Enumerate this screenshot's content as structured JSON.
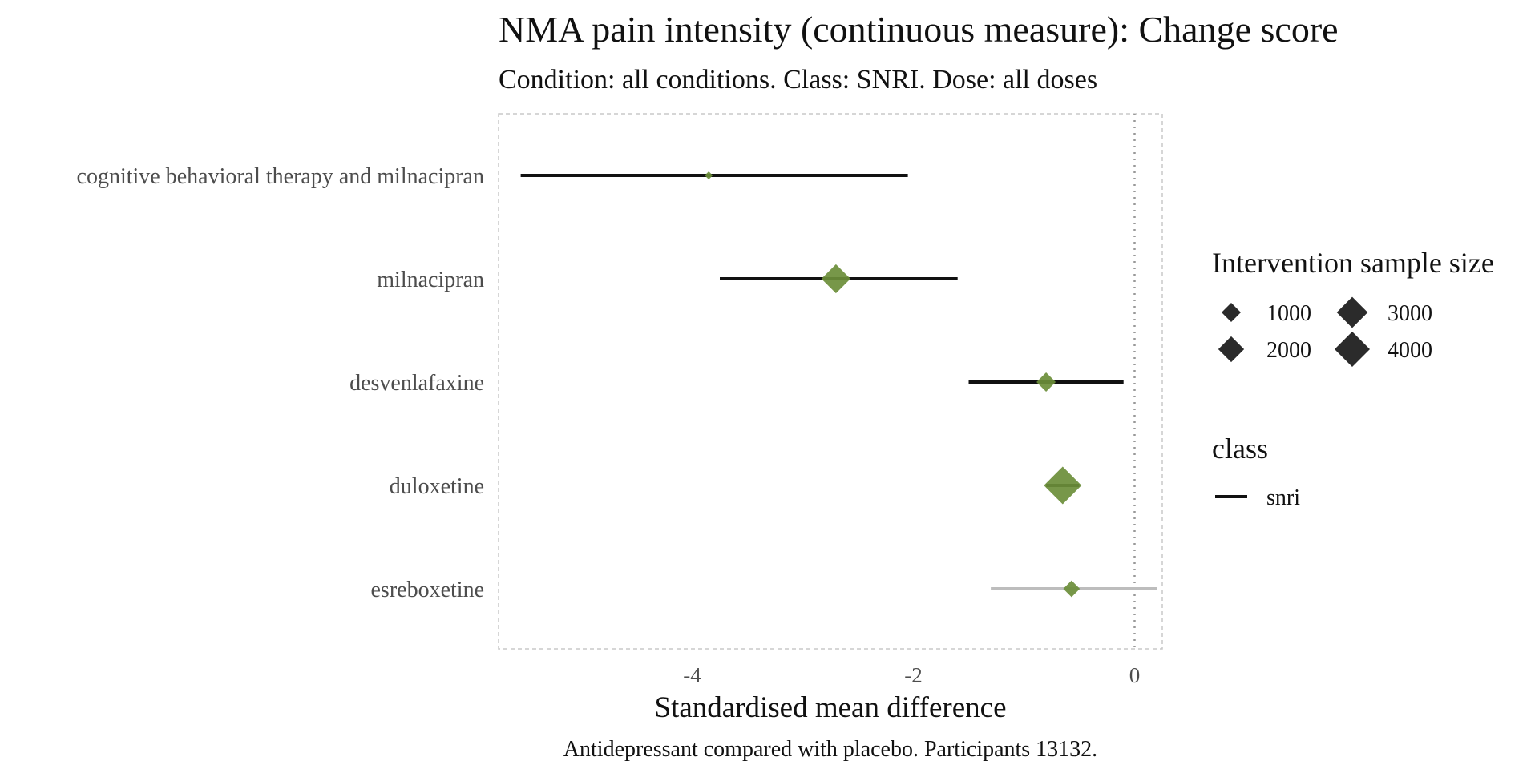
{
  "chart_data": {
    "type": "forest",
    "title": "NMA pain intensity (continuous measure): Change score",
    "subtitle": "Condition: all conditions. Class: SNRI. Dose: all doses",
    "xlabel": "Standardised mean difference",
    "caption": "Antidepressant compared with placebo. Participants 13132.",
    "xlim": [
      -5.75,
      0.25
    ],
    "xticks": [
      -4,
      -2,
      0
    ],
    "xtick_labels": [
      "-4",
      "-2",
      "0"
    ],
    "reference_line": 0,
    "grid": false,
    "rows": [
      {
        "label": "cognitive behavioral therapy and milnacipran",
        "estimate": -3.85,
        "lower": -5.55,
        "upper": -2.05,
        "sample_size": 90,
        "class": "snri",
        "line_color": "#111111"
      },
      {
        "label": "milnacipran",
        "estimate": -2.7,
        "lower": -3.75,
        "upper": -1.6,
        "sample_size": 2600,
        "class": "snri",
        "line_color": "#111111"
      },
      {
        "label": "desvenlafaxine",
        "estimate": -0.8,
        "lower": -1.5,
        "upper": -0.1,
        "sample_size": 1000,
        "class": "snri",
        "line_color": "#111111"
      },
      {
        "label": "duloxetine",
        "estimate": -0.65,
        "lower": -0.8,
        "upper": -0.5,
        "sample_size": 4600,
        "class": "snri",
        "line_color": "#111111"
      },
      {
        "label": "esreboxetine",
        "estimate": -0.57,
        "lower": -1.3,
        "upper": 0.2,
        "sample_size": 700,
        "class": "snri",
        "line_color": "#bdbdbd"
      }
    ],
    "point_color": "#6b8e3a",
    "legend": {
      "position": "right",
      "size_title": "Intervention sample size",
      "size_entries": [
        {
          "label": "1000",
          "value": 1000
        },
        {
          "label": "3000",
          "value": 3000
        },
        {
          "label": "2000",
          "value": 2000
        },
        {
          "label": "4000",
          "value": 4000
        }
      ],
      "class_title": "class",
      "class_entries": [
        {
          "label": "snri",
          "color": "#111111"
        }
      ]
    }
  }
}
